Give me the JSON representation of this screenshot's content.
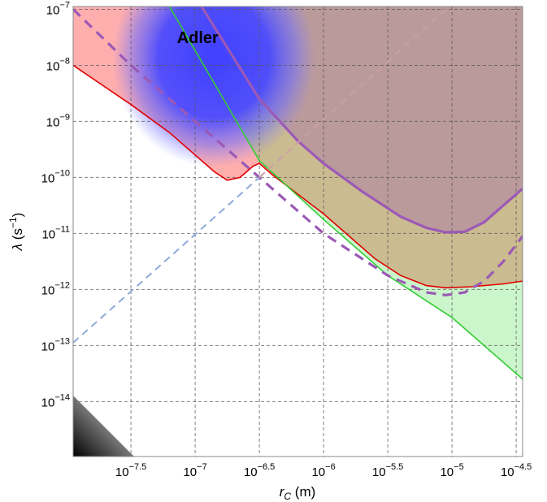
{
  "chart_data": {
    "type": "area",
    "title": "",
    "xscale": "log",
    "yscale": "log",
    "xlim_log10": [
      -7.95,
      -4.45
    ],
    "ylim_log10": [
      -14.98,
      -6.95
    ],
    "grid": true,
    "xlabel": {
      "symbol": "r",
      "sub": "C",
      "unit": " (m)"
    },
    "ylabel": {
      "symbol": "λ",
      "unit_open": " (s",
      "sup": "−1",
      "unit_close": ")"
    },
    "x_ticks": [
      {
        "log": -7.5,
        "base": "10",
        "exp": "−7.5"
      },
      {
        "log": -7.0,
        "base": "10",
        "exp": "−7"
      },
      {
        "log": -6.5,
        "base": "10",
        "exp": "−6.5"
      },
      {
        "log": -6.0,
        "base": "10",
        "exp": "−6"
      },
      {
        "log": -5.5,
        "base": "10",
        "exp": "−5.5"
      },
      {
        "log": -5.0,
        "base": "10",
        "exp": "−5"
      },
      {
        "log": -4.5,
        "base": "10",
        "exp": "−4.5"
      }
    ],
    "y_ticks": [
      {
        "log": -7,
        "base": "10",
        "exp": "−7"
      },
      {
        "log": -8,
        "base": "10",
        "exp": "−8"
      },
      {
        "log": -9,
        "base": "10",
        "exp": "−9"
      },
      {
        "log": -10,
        "base": "10",
        "exp": "−10"
      },
      {
        "log": -11,
        "base": "10",
        "exp": "−11"
      },
      {
        "log": -12,
        "base": "10",
        "exp": "−12"
      },
      {
        "log": -13,
        "base": "10",
        "exp": "−13"
      },
      {
        "log": -14,
        "base": "10",
        "exp": "−14"
      }
    ],
    "series": [
      {
        "color": "#ff6b6b",
        "fill": "above",
        "fill_opacity": 0.55,
        "style": "solid",
        "points_log10": [
          [
            -7.95,
            -8.0
          ],
          [
            -7.5,
            -8.7
          ],
          [
            -7.2,
            -9.2
          ],
          [
            -7.0,
            -9.6
          ],
          [
            -6.85,
            -9.9
          ],
          [
            -6.75,
            -10.05
          ],
          [
            -6.65,
            -10.0
          ],
          [
            -6.55,
            -9.8
          ],
          [
            -6.5,
            -9.75
          ],
          [
            -6.4,
            -9.95
          ],
          [
            -6.2,
            -10.3
          ],
          [
            -6.0,
            -10.65
          ],
          [
            -5.8,
            -11.05
          ],
          [
            -5.6,
            -11.45
          ],
          [
            -5.4,
            -11.75
          ],
          [
            -5.2,
            -11.93
          ],
          [
            -5.05,
            -11.97
          ],
          [
            -4.85,
            -11.95
          ],
          [
            -4.6,
            -11.9
          ],
          [
            -4.45,
            -11.85
          ]
        ]
      },
      {
        "color": "#44dd44",
        "fill": "above",
        "fill_opacity": 0.28,
        "style": "solid",
        "points_log10": [
          [
            -7.2,
            -6.95
          ],
          [
            -6.5,
            -9.7
          ],
          [
            -6.0,
            -10.75
          ],
          [
            -5.5,
            -11.75
          ],
          [
            -5.0,
            -12.5
          ],
          [
            -4.45,
            -13.6
          ]
        ]
      },
      {
        "color": "#9b59b6",
        "fill": "above",
        "fill_opacity": 0.33,
        "style": "solid",
        "points_log10": [
          [
            -6.95,
            -6.95
          ],
          [
            -6.5,
            -8.6
          ],
          [
            -6.2,
            -9.35
          ],
          [
            -6.0,
            -9.75
          ],
          [
            -5.7,
            -10.25
          ],
          [
            -5.4,
            -10.7
          ],
          [
            -5.2,
            -10.9
          ],
          [
            -5.05,
            -10.98
          ],
          [
            -4.9,
            -10.97
          ],
          [
            -4.75,
            -10.8
          ],
          [
            -4.6,
            -10.5
          ],
          [
            -4.45,
            -10.2
          ]
        ]
      },
      {
        "color": "#9b59b6",
        "fill": "none",
        "style": "dashed",
        "points_log10": [
          [
            -7.95,
            -7.0
          ],
          [
            -7.5,
            -8.0
          ],
          [
            -7.0,
            -9.0
          ],
          [
            -6.5,
            -10.0
          ],
          [
            -6.0,
            -11.0
          ],
          [
            -5.5,
            -11.75
          ],
          [
            -5.2,
            -12.05
          ],
          [
            -5.05,
            -12.1
          ],
          [
            -4.9,
            -12.05
          ],
          [
            -4.75,
            -11.85
          ],
          [
            -4.6,
            -11.5
          ],
          [
            -4.45,
            -11.05
          ]
        ]
      },
      {
        "color": "#8faadc",
        "fill": "none",
        "style": "dashed",
        "points_log10": [
          [
            -7.95,
            -12.95
          ],
          [
            -6.5,
            -10.0
          ]
        ]
      },
      {
        "color": "#c9a0a8",
        "fill": "none",
        "style": "dashed",
        "points_log10": [
          [
            -6.5,
            -10.0
          ],
          [
            -5.05,
            -7.0
          ]
        ]
      }
    ],
    "annotations": [
      {
        "text": "Adler",
        "x_log10": -6.98,
        "y_log10": -7.5
      }
    ]
  }
}
